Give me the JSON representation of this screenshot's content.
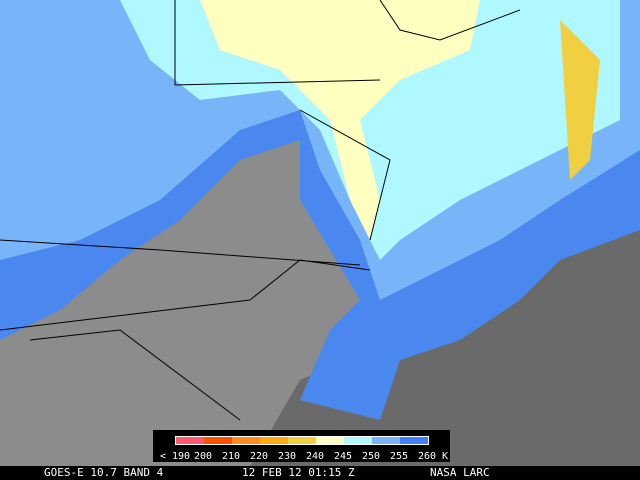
{
  "legend": {
    "labels": [
      "< 190",
      "200",
      "210",
      "220",
      "230",
      "240",
      "245",
      "250",
      "255",
      "260 K"
    ],
    "colors": [
      "#ff5a70",
      "#ff5000",
      "#ff8c1e",
      "#ffaa10",
      "#f0d040",
      "#ffffc0",
      "#b0f8ff",
      "#78b4f8",
      "#4080ff"
    ]
  },
  "footer": {
    "satellite": "GOES-E 10.7 BAND 4",
    "datetime": "12 FEB 12 01:15 Z",
    "credit": "NASA LARC"
  },
  "colors": {
    "land": "#8a8a8a",
    "cloud_cold": "#4080ff",
    "cloud_mid": "#78b4f8",
    "cloud_light": "#b0f8ff",
    "cloud_coldest": "#ffffc0"
  }
}
